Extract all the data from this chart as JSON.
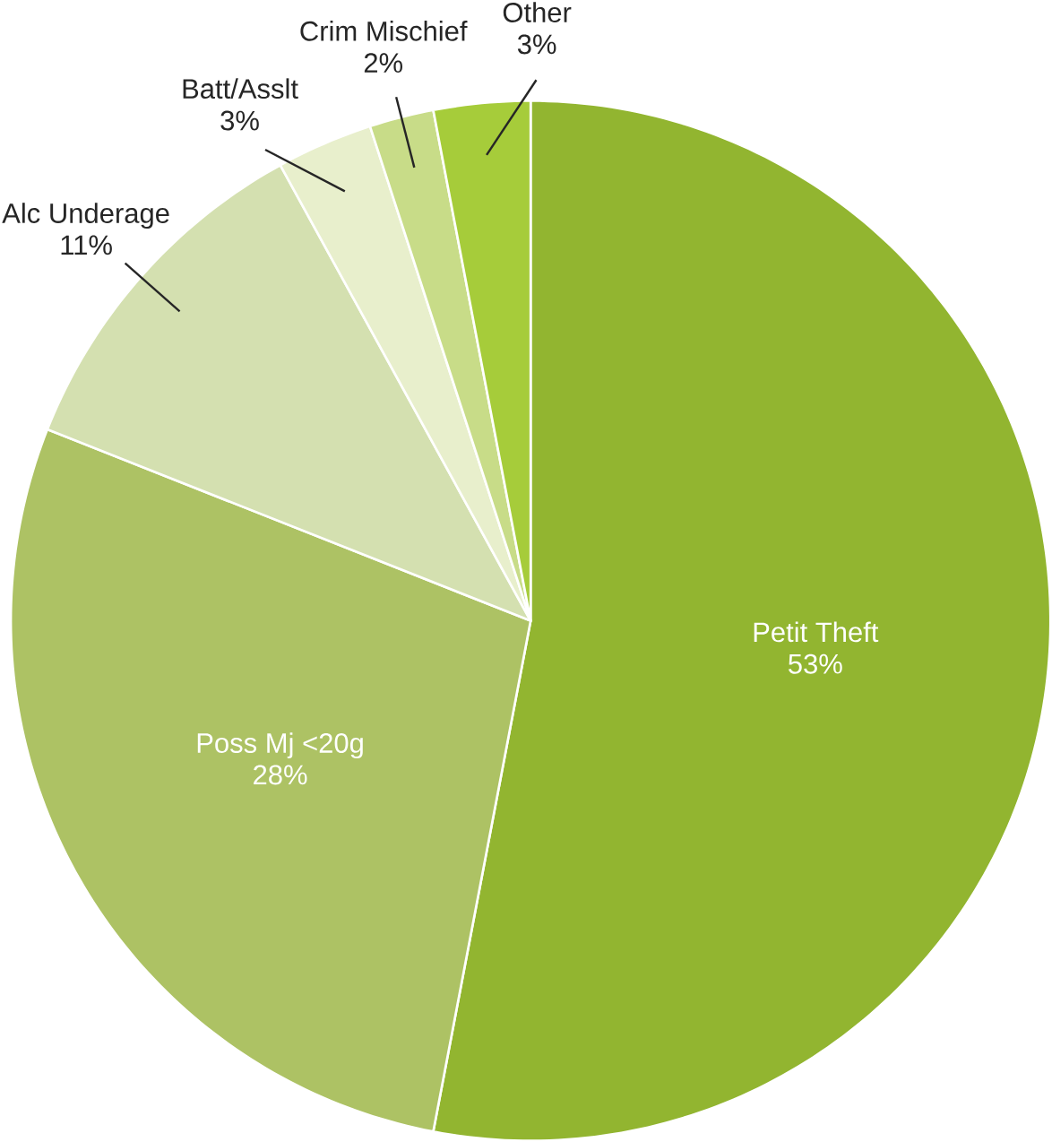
{
  "chart_data": {
    "type": "pie",
    "categories": [
      "Petit Theft",
      "Poss Mj <20g",
      "Alc Underage",
      "Batt/Asslt",
      "Crim Mischief",
      "Other"
    ],
    "values": [
      53,
      28,
      11,
      3,
      2,
      3
    ],
    "value_labels": [
      "53%",
      "28%",
      "11%",
      "3%",
      "2%",
      "3%"
    ],
    "colors": [
      "#92b530",
      "#adc264",
      "#d4e0b0",
      "#e8efcc",
      "#c8dc88",
      "#a6cc3a"
    ]
  }
}
